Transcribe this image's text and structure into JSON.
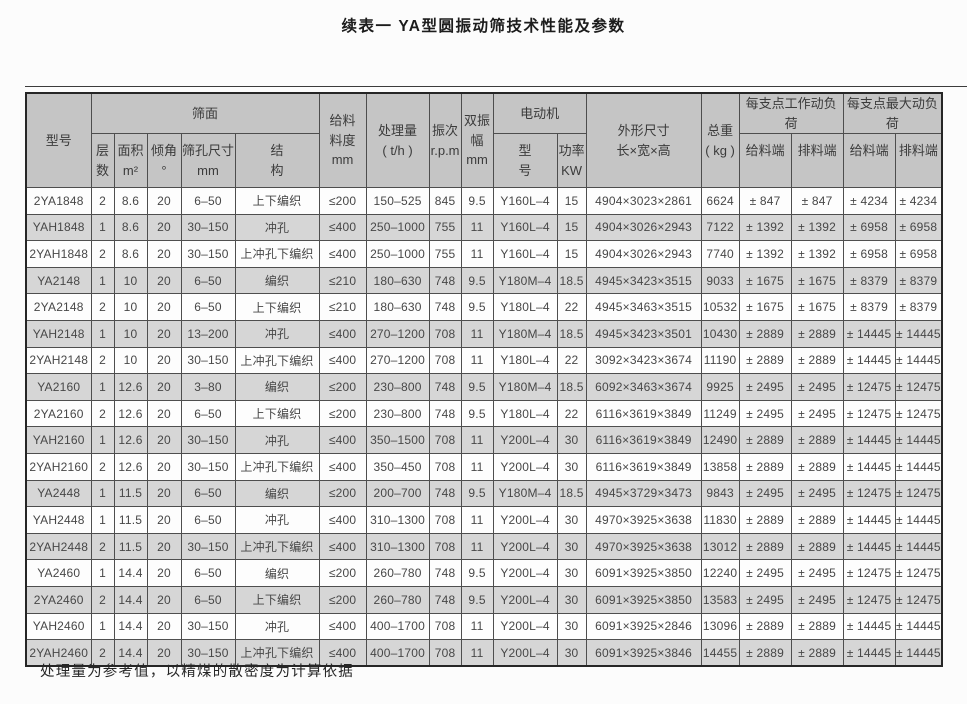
{
  "page": {
    "title": "续表一 YA型圆振动筛技术性能及参数",
    "footnote": "处理量为参考值，以精煤的散密度为计算依据"
  },
  "table": {
    "headers": {
      "model": "型号",
      "sieve_group": "筛面",
      "layers": "层\n数",
      "area": "面积\nm²",
      "incline": "倾角\n°",
      "mesh": "筛孔尺寸\nmm",
      "structure": "结\n构",
      "feed_size": "给料\n料度\nmm",
      "capacity": "处理量\n( t/h )",
      "frequency": "振次\nr.p.m",
      "amplitude": "双振\n幅\nmm",
      "motor_group": "电动机",
      "motor_model": "型\n号",
      "motor_power": "功率\nKW",
      "dimensions": "外形尺寸\n长×宽×高",
      "weight": "总重\n( kg )",
      "working_load_group": "每支点工作动负荷",
      "max_load_group": "每支点最大动负荷",
      "working_feed_end": "给料端",
      "working_discharge_end": "排料端",
      "max_feed_end": "给料端",
      "max_discharge_end": "排料端"
    },
    "rows": [
      [
        "2YA1848",
        "2",
        "8.6",
        "20",
        "6–50",
        "上下编织",
        "≤200",
        "150–525",
        "845",
        "9.5",
        "Y160L–4",
        "15",
        "4904×3023×2861",
        "6624",
        "± 847",
        "± 847",
        "± 4234",
        "± 4234"
      ],
      [
        "YAH1848",
        "1",
        "8.6",
        "20",
        "30–150",
        "冲孔",
        "≤400",
        "250–1000",
        "755",
        "11",
        "Y160L–4",
        "15",
        "4904×3026×2943",
        "7122",
        "± 1392",
        "± 1392",
        "± 6958",
        "± 6958"
      ],
      [
        "2YAH1848",
        "2",
        "8.6",
        "20",
        "30–150",
        "上冲孔下编织",
        "≤400",
        "250–1000",
        "755",
        "11",
        "Y160L–4",
        "15",
        "4904×3026×2943",
        "7740",
        "± 1392",
        "± 1392",
        "± 6958",
        "± 6958"
      ],
      [
        "YA2148",
        "1",
        "10",
        "20",
        "6–50",
        "编织",
        "≤210",
        "180–630",
        "748",
        "9.5",
        "Y180M–4",
        "18.5",
        "4945×3423×3515",
        "9033",
        "± 1675",
        "± 1675",
        "± 8379",
        "± 8379"
      ],
      [
        "2YA2148",
        "2",
        "10",
        "20",
        "6–50",
        "上下编织",
        "≤210",
        "180–630",
        "748",
        "9.5",
        "Y180L–4",
        "22",
        "4945×3463×3515",
        "10532",
        "± 1675",
        "± 1675",
        "± 8379",
        "± 8379"
      ],
      [
        "YAH2148",
        "1",
        "10",
        "20",
        "13–200",
        "冲孔",
        "≤400",
        "270–1200",
        "708",
        "11",
        "Y180M–4",
        "18.5",
        "4945×3423×3501",
        "10430",
        "± 2889",
        "± 2889",
        "± 14445",
        "± 14445"
      ],
      [
        "2YAH2148",
        "2",
        "10",
        "20",
        "30–150",
        "上冲孔下编织",
        "≤400",
        "270–1200",
        "708",
        "11",
        "Y180L–4",
        "22",
        "3092×3423×3674",
        "11190",
        "± 2889",
        "± 2889",
        "± 14445",
        "± 14445"
      ],
      [
        "YA2160",
        "1",
        "12.6",
        "20",
        "3–80",
        "编织",
        "≤200",
        "230–800",
        "748",
        "9.5",
        "Y180M–4",
        "18.5",
        "6092×3463×3674",
        "9925",
        "± 2495",
        "± 2495",
        "± 12475",
        "± 12475"
      ],
      [
        "2YA2160",
        "2",
        "12.6",
        "20",
        "6–50",
        "上下编织",
        "≤200",
        "230–800",
        "748",
        "9.5",
        "Y180L–4",
        "22",
        "6116×3619×3849",
        "11249",
        "± 2495",
        "± 2495",
        "± 12475",
        "± 12475"
      ],
      [
        "YAH2160",
        "1",
        "12.6",
        "20",
        "30–150",
        "冲孔",
        "≤400",
        "350–1500",
        "708",
        "11",
        "Y200L–4",
        "30",
        "6116×3619×3849",
        "12490",
        "± 2889",
        "± 2889",
        "± 14445",
        "± 14445"
      ],
      [
        "2YAH2160",
        "2",
        "12.6",
        "20",
        "30–150",
        "上冲孔下编织",
        "≤400",
        "350–450",
        "708",
        "11",
        "Y200L–4",
        "30",
        "6116×3619×3849",
        "13858",
        "± 2889",
        "± 2889",
        "± 14445",
        "± 14445"
      ],
      [
        "YA2448",
        "1",
        "11.5",
        "20",
        "6–50",
        "编织",
        "≤200",
        "200–700",
        "748",
        "9.5",
        "Y180M–4",
        "18.5",
        "4945×3729×3473",
        "9843",
        "± 2495",
        "± 2495",
        "± 12475",
        "± 12475"
      ],
      [
        "YAH2448",
        "1",
        "11.5",
        "20",
        "6–50",
        "冲孔",
        "≤400",
        "310–1300",
        "708",
        "11",
        "Y200L–4",
        "30",
        "4970×3925×3638",
        "11830",
        "± 2889",
        "± 2889",
        "± 14445",
        "± 14445"
      ],
      [
        "2YAH2448",
        "2",
        "11.5",
        "20",
        "30–150",
        "上冲孔下编织",
        "≤400",
        "310–1300",
        "708",
        "11",
        "Y200L–4",
        "30",
        "4970×3925×3638",
        "13012",
        "± 2889",
        "± 2889",
        "± 14445",
        "± 14445"
      ],
      [
        "YA2460",
        "1",
        "14.4",
        "20",
        "6–50",
        "编织",
        "≤200",
        "260–780",
        "748",
        "9.5",
        "Y200L–4",
        "30",
        "6091×3925×3850",
        "12240",
        "± 2495",
        "± 2495",
        "± 12475",
        "± 12475"
      ],
      [
        "2YA2460",
        "2",
        "14.4",
        "20",
        "6–50",
        "上下编织",
        "≤200",
        "260–780",
        "748",
        "9.5",
        "Y200L–4",
        "30",
        "6091×3925×3850",
        "13583",
        "± 2495",
        "± 2495",
        "± 12475",
        "± 12475"
      ],
      [
        "YAH2460",
        "1",
        "14.4",
        "20",
        "30–150",
        "冲孔",
        "≤400",
        "400–1700",
        "708",
        "11",
        "Y200L–4",
        "30",
        "6091×3925×2846",
        "13096",
        "± 2889",
        "± 2889",
        "± 14445",
        "± 14445"
      ],
      [
        "2YAH2460",
        "2",
        "14.4",
        "20",
        "30–150",
        "上冲孔下编织",
        "≤400",
        "400–1700",
        "708",
        "11",
        "Y200L–4",
        "30",
        "6091×3925×3846",
        "14455",
        "± 2889",
        "± 2889",
        "± 14445",
        "± 14445"
      ]
    ]
  }
}
